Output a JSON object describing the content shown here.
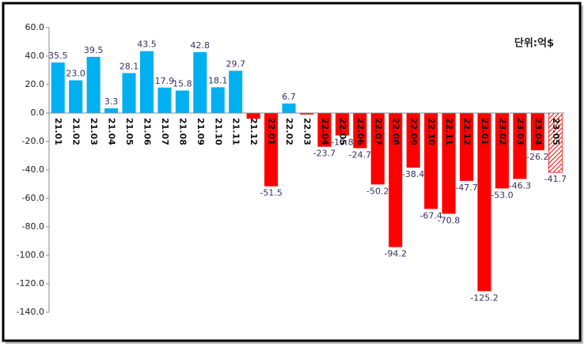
{
  "chart_data": {
    "type": "bar",
    "unit_label": "단위:억$",
    "categories": [
      "21.01",
      "21.02",
      "21.03",
      "21.04",
      "21.05",
      "21.06",
      "21.07",
      "21.08",
      "21.09",
      "21.10",
      "21.11",
      "21.12",
      "22.01",
      "22.02",
      "22.03",
      "22.04",
      "22.05",
      "22.06",
      "22.07",
      "22.08",
      "22.09",
      "22.10",
      "22.11",
      "22.12",
      "23.01",
      "23.02",
      "23.03",
      "23.04",
      "23.05"
    ],
    "values": [
      35.5,
      23.0,
      39.5,
      3.3,
      28.1,
      43.5,
      17.9,
      15.8,
      42.8,
      18.1,
      29.7,
      -4,
      -51.5,
      6.7,
      -1,
      -23.7,
      -15.8,
      -24.7,
      -50.2,
      -94.2,
      -38.4,
      -67.4,
      -70.8,
      -47.7,
      -125.2,
      -53.0,
      -46.3,
      -26.2,
      -41.7
    ],
    "value_labels": [
      "35.5",
      "23.0",
      "39.5",
      "3.3",
      "28.1",
      "43.5",
      "17.9",
      "15.8",
      "42.8",
      "18.1",
      "29.7",
      null,
      "-51.5",
      "6.7",
      null,
      "-23.7",
      "-15.8",
      "-24.7",
      "-50.2",
      "-94.2",
      "-38.4",
      "-67.4",
      "-70.8",
      "-47.7",
      "-125.2",
      "-53.0",
      "-46.3",
      "-26.2",
      "-41.7"
    ],
    "positive_color": "#00b0f0",
    "negative_color": "#ff0000",
    "hatched_categories": [
      "23.05"
    ],
    "ylim": [
      -140,
      60
    ],
    "yticks": [
      {
        "value": 60,
        "label": "60.0"
      },
      {
        "value": 40,
        "label": "40.0"
      },
      {
        "value": 20,
        "label": "20.0"
      },
      {
        "value": 0,
        "label": "0.0"
      },
      {
        "value": -20,
        "label": "-20.0"
      },
      {
        "value": -40,
        "label": "-40.0"
      },
      {
        "value": -60,
        "label": "-60.0"
      },
      {
        "value": -80,
        "label": "-80.0"
      },
      {
        "value": -100,
        "label": "-100.0"
      },
      {
        "value": -120,
        "label": "-120.0"
      },
      {
        "value": -140,
        "label": "-140.0"
      }
    ],
    "grid": false
  }
}
